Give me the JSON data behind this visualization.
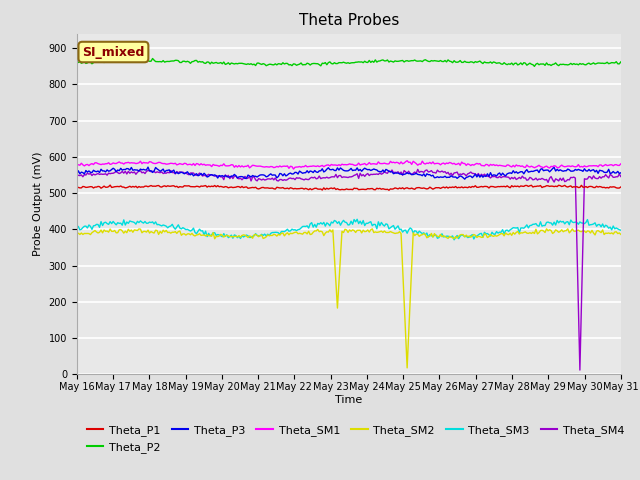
{
  "title": "Theta Probes",
  "xlabel": "Time",
  "ylabel": "Probe Output (mV)",
  "ylim": [
    0,
    940
  ],
  "yticks": [
    0,
    100,
    200,
    300,
    400,
    500,
    600,
    700,
    800,
    900
  ],
  "xtick_labels": [
    "May 16",
    "May 17",
    "May 18",
    "May 19",
    "May 20",
    "May 21",
    "May 22",
    "May 23",
    "May 24",
    "May 25",
    "May 26",
    "May 27",
    "May 28",
    "May 29",
    "May 30",
    "May 31"
  ],
  "annotation_text": "SI_mixed",
  "annotation_color": "#8B0000",
  "annotation_bg": "#FFFFA0",
  "annotation_border": "#8B6914",
  "series": {
    "Theta_P1": {
      "color": "#DD0000",
      "base": 515,
      "amplitude": 4,
      "freq": 1.5,
      "noise": 1.5
    },
    "Theta_P2": {
      "color": "#00CC00",
      "base": 860,
      "amplitude": 5,
      "freq": 2.0,
      "noise": 2.0
    },
    "Theta_P3": {
      "color": "#0000EE",
      "base": 555,
      "amplitude": 10,
      "freq": 2.5,
      "noise": 3.0
    },
    "Theta_SM1": {
      "color": "#FF00FF",
      "base": 578,
      "amplitude": 5,
      "freq": 2.0,
      "noise": 2.0
    },
    "Theta_SM2": {
      "color": "#DDDD00",
      "base": 388,
      "amplitude": 8,
      "freq": 2.5,
      "noise": 3.0
    },
    "Theta_SM3": {
      "color": "#00DDDD",
      "base": 400,
      "amplitude": 20,
      "freq": 2.5,
      "noise": 4.0
    },
    "Theta_SM4": {
      "color": "#9900CC",
      "base": 548,
      "amplitude": 10,
      "freq": 2.0,
      "noise": 3.0
    }
  },
  "SM2_dip1_day": 7.2,
  "SM2_dip1_val": 183,
  "SM2_dip2_day": 9.1,
  "SM2_dip2_val": 18,
  "SM4_dip_day": 13.85,
  "SM4_dip_val": 12,
  "background_color": "#E8E8E8",
  "grid_color": "#FFFFFF",
  "fig_bg": "#E0E0E0",
  "title_fontsize": 11,
  "axis_label_fontsize": 8,
  "tick_fontsize": 7,
  "legend_fontsize": 8
}
